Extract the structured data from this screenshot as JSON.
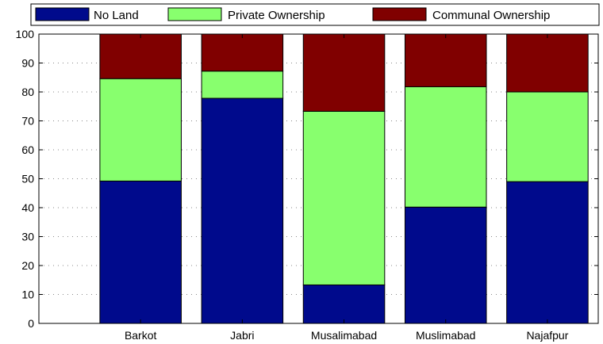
{
  "chart_data": {
    "type": "bar",
    "stacked": true,
    "categories": [
      "Barkot",
      "Jabri",
      "Musalimabad",
      "Muslimabad",
      "Najafpur"
    ],
    "series": [
      {
        "name": "No Land",
        "color": "#000a8c",
        "values": [
          49.2,
          77.8,
          13.3,
          40.2,
          49.0
        ]
      },
      {
        "name": "Private Ownership",
        "color": "#88ff6e",
        "values": [
          35.4,
          9.4,
          60.0,
          41.6,
          31.0
        ]
      },
      {
        "name": "Communal Ownership",
        "color": "#800000",
        "values": [
          15.4,
          12.8,
          26.7,
          18.2,
          20.0
        ]
      }
    ],
    "yticks": [
      "0",
      "10",
      "20",
      "30",
      "40",
      "50",
      "60",
      "70",
      "80",
      "90",
      "100"
    ],
    "ylim": [
      0,
      100
    ],
    "title": "",
    "xlabel": "",
    "ylabel": "",
    "grid": "dotted-horizontal",
    "legend": "top"
  }
}
